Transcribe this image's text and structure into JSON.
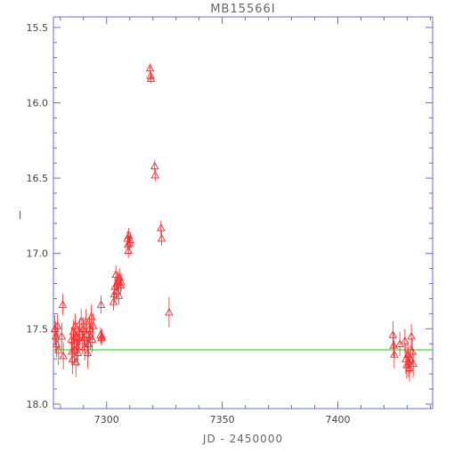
{
  "chart_data": {
    "type": "scatter",
    "title": "MB15566I",
    "xlabel": "JD - 2450000",
    "ylabel": "I",
    "xlim": [
      7277,
      7441
    ],
    "ylim": [
      18.03,
      15.43
    ],
    "y_inverted": true,
    "xticks": [
      7300,
      7350,
      7400
    ],
    "yticks": [
      15.5,
      16.0,
      16.5,
      17.0,
      17.5,
      18.0
    ],
    "xtick_labels": [
      "7300",
      "7350",
      "7400"
    ],
    "ytick_labels": [
      "15.5",
      "16.0",
      "16.5",
      "17.0",
      "17.5",
      "18.0"
    ],
    "baseline": {
      "y": 17.64,
      "color": "#00e000"
    },
    "series": [
      {
        "color": "#ff2a2a",
        "marker": "triangle",
        "points": [
          {
            "x": 7277.6,
            "y": 17.5,
            "err": 0.09
          },
          {
            "x": 7278.0,
            "y": 17.55,
            "err": 0.1
          },
          {
            "x": 7278.4,
            "y": 17.6,
            "err": 0.09
          },
          {
            "x": 7278.8,
            "y": 17.48,
            "err": 0.08
          },
          {
            "x": 7279.2,
            "y": 17.64,
            "err": 0.1
          },
          {
            "x": 7280.6,
            "y": 17.55,
            "err": 0.09
          },
          {
            "x": 7281.0,
            "y": 17.34,
            "err": 0.07
          },
          {
            "x": 7281.3,
            "y": 17.68,
            "err": 0.09
          },
          {
            "x": 7284.8,
            "y": 17.57,
            "err": 0.08
          },
          {
            "x": 7285.0,
            "y": 17.65,
            "err": 0.09
          },
          {
            "x": 7285.3,
            "y": 17.7,
            "err": 0.1
          },
          {
            "x": 7285.6,
            "y": 17.52,
            "err": 0.08
          },
          {
            "x": 7285.8,
            "y": 17.58,
            "err": 0.09
          },
          {
            "x": 7286.1,
            "y": 17.64,
            "err": 0.1
          },
          {
            "x": 7286.4,
            "y": 17.48,
            "err": 0.08
          },
          {
            "x": 7286.7,
            "y": 17.72,
            "err": 0.1
          },
          {
            "x": 7287.0,
            "y": 17.55,
            "err": 0.09
          },
          {
            "x": 7287.3,
            "y": 17.62,
            "err": 0.09
          },
          {
            "x": 7287.6,
            "y": 17.66,
            "err": 0.09
          },
          {
            "x": 7288.0,
            "y": 17.56,
            "err": 0.08
          },
          {
            "x": 7288.4,
            "y": 17.52,
            "err": 0.09
          },
          {
            "x": 7289.0,
            "y": 17.45,
            "err": 0.08
          },
          {
            "x": 7289.4,
            "y": 17.58,
            "err": 0.09
          },
          {
            "x": 7289.8,
            "y": 17.5,
            "err": 0.08
          },
          {
            "x": 7290.2,
            "y": 17.56,
            "err": 0.09
          },
          {
            "x": 7290.6,
            "y": 17.62,
            "err": 0.09
          },
          {
            "x": 7291.0,
            "y": 17.45,
            "err": 0.08
          },
          {
            "x": 7291.4,
            "y": 17.54,
            "err": 0.09
          },
          {
            "x": 7291.8,
            "y": 17.66,
            "err": 0.1
          },
          {
            "x": 7292.2,
            "y": 17.6,
            "err": 0.09
          },
          {
            "x": 7292.6,
            "y": 17.5,
            "err": 0.08
          },
          {
            "x": 7293.0,
            "y": 17.55,
            "err": 0.09
          },
          {
            "x": 7293.4,
            "y": 17.42,
            "err": 0.08
          },
          {
            "x": 7293.8,
            "y": 17.57,
            "err": 0.09
          },
          {
            "x": 7294.2,
            "y": 17.48,
            "err": 0.08
          },
          {
            "x": 7297.4,
            "y": 17.54,
            "err": 0.05
          },
          {
            "x": 7297.7,
            "y": 17.56,
            "err": 0.05
          },
          {
            "x": 7298.0,
            "y": 17.55,
            "err": 0.05
          },
          {
            "x": 7297.6,
            "y": 17.34,
            "err": 0.06
          },
          {
            "x": 7303.0,
            "y": 17.32,
            "err": 0.06
          },
          {
            "x": 7303.3,
            "y": 17.27,
            "err": 0.06
          },
          {
            "x": 7303.6,
            "y": 17.22,
            "err": 0.06
          },
          {
            "x": 7304.0,
            "y": 17.14,
            "err": 0.06
          },
          {
            "x": 7304.3,
            "y": 17.25,
            "err": 0.06
          },
          {
            "x": 7304.6,
            "y": 17.2,
            "err": 0.06
          },
          {
            "x": 7305.0,
            "y": 17.18,
            "err": 0.06
          },
          {
            "x": 7305.3,
            "y": 17.28,
            "err": 0.06
          },
          {
            "x": 7305.6,
            "y": 17.16,
            "err": 0.06
          },
          {
            "x": 7306.0,
            "y": 17.21,
            "err": 0.06
          },
          {
            "x": 7306.3,
            "y": 17.19,
            "err": 0.06
          },
          {
            "x": 7309.0,
            "y": 16.9,
            "err": 0.05
          },
          {
            "x": 7309.3,
            "y": 16.94,
            "err": 0.05
          },
          {
            "x": 7309.6,
            "y": 16.88,
            "err": 0.05
          },
          {
            "x": 7309.9,
            "y": 16.93,
            "err": 0.05
          },
          {
            "x": 7310.2,
            "y": 16.91,
            "err": 0.05
          },
          {
            "x": 7309.4,
            "y": 16.98,
            "err": 0.05
          },
          {
            "x": 7318.8,
            "y": 15.77,
            "err": 0.03
          },
          {
            "x": 7319.0,
            "y": 15.82,
            "err": 0.03
          },
          {
            "x": 7319.2,
            "y": 15.84,
            "err": 0.03
          },
          {
            "x": 7320.8,
            "y": 16.42,
            "err": 0.04
          },
          {
            "x": 7321.0,
            "y": 16.48,
            "err": 0.04
          },
          {
            "x": 7323.5,
            "y": 16.83,
            "err": 0.05
          },
          {
            "x": 7323.8,
            "y": 16.9,
            "err": 0.05
          },
          {
            "x": 7327.0,
            "y": 17.39,
            "err": 0.1
          },
          {
            "x": 7423.8,
            "y": 17.54,
            "err": 0.09
          },
          {
            "x": 7424.1,
            "y": 17.61,
            "err": 0.08
          },
          {
            "x": 7424.4,
            "y": 17.67,
            "err": 0.09
          },
          {
            "x": 7426.8,
            "y": 17.6,
            "err": 0.08
          },
          {
            "x": 7429.0,
            "y": 17.58,
            "err": 0.08
          },
          {
            "x": 7429.4,
            "y": 17.7,
            "err": 0.1
          },
          {
            "x": 7429.8,
            "y": 17.74,
            "err": 0.09
          },
          {
            "x": 7430.2,
            "y": 17.67,
            "err": 0.09
          },
          {
            "x": 7430.6,
            "y": 17.72,
            "err": 0.1
          },
          {
            "x": 7431.0,
            "y": 17.76,
            "err": 0.09
          },
          {
            "x": 7431.4,
            "y": 17.7,
            "err": 0.09
          },
          {
            "x": 7431.8,
            "y": 17.55,
            "err": 0.08
          },
          {
            "x": 7432.2,
            "y": 17.65,
            "err": 0.09
          },
          {
            "x": 7432.6,
            "y": 17.73,
            "err": 0.09
          }
        ]
      }
    ]
  }
}
